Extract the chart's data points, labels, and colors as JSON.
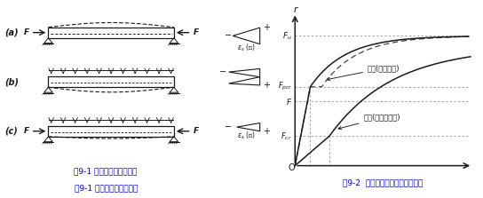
{
  "bg_color": "#ffffff",
  "fig_width": 5.44,
  "fig_height": 2.23,
  "dpi": 100,
  "caption1": "图9-1 预应力梁的受力情况",
  "caption2": "图9-2  梁的荷载－绕度曲线对比图",
  "ylabel": "r",
  "origin_label": "O",
  "Fu": 0.83,
  "Fpcr": 0.52,
  "F": 0.43,
  "Fcr": 0.22,
  "label_prestress": "开裂(预应力梁)",
  "label_normal": "开裂(非预应力梁)",
  "line_color": "#1a1a1a",
  "caption_color": "#0000cc"
}
